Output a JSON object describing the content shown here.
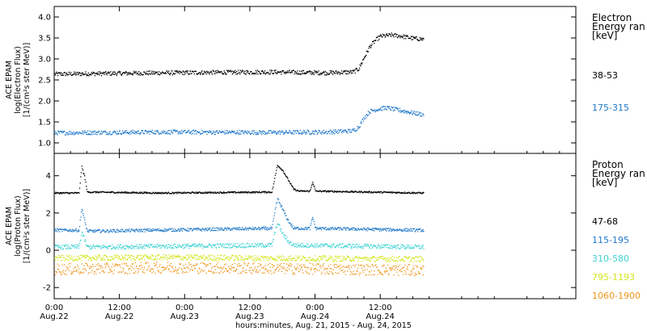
{
  "chart_data": {
    "type": "scatter",
    "x_axis": {
      "label": "hours:minutes, Aug. 21, 2015 - Aug. 24, 2015",
      "range_hours": [
        0,
        96
      ],
      "ticks": [
        {
          "hour": 0,
          "time": "0:00",
          "date": "Aug.22"
        },
        {
          "hour": 12,
          "time": "12:00",
          "date": "Aug.22"
        },
        {
          "hour": 24,
          "time": "0:00",
          "date": "Aug.23"
        },
        {
          "hour": 36,
          "time": "12:00",
          "date": "Aug.23"
        },
        {
          "hour": 48,
          "time": "0:00",
          "date": "Aug.24"
        },
        {
          "hour": 60,
          "time": "12:00",
          "date": "Aug.24"
        }
      ]
    },
    "panels": [
      {
        "id": "electron",
        "ylabel_lines": [
          "ACE EPAM",
          "log(Electron Flux)",
          "[1/(cm²s ster MeV)]"
        ],
        "ylim": [
          0.75,
          4.25
        ],
        "yticks": [
          "1.0",
          "1.5",
          "2.0",
          "2.5",
          "3.0",
          "3.5",
          "4.0"
        ],
        "ytick_values": [
          1.0,
          1.5,
          2.0,
          2.5,
          3.0,
          3.5,
          4.0
        ],
        "legend_title": [
          "Electron",
          "Energy ran",
          "[keV]"
        ],
        "series": [
          {
            "name": "38-53",
            "color": "#000000",
            "noise": 0.05,
            "points": [
              [
                0,
                2.65
              ],
              [
                20,
                2.68
              ],
              [
                40,
                2.7
              ],
              [
                50,
                2.68
              ],
              [
                55,
                2.7
              ],
              [
                56,
                2.78
              ],
              [
                57,
                3.05
              ],
              [
                58,
                3.3
              ],
              [
                59,
                3.45
              ],
              [
                60,
                3.55
              ],
              [
                62,
                3.58
              ],
              [
                64,
                3.55
              ],
              [
                66,
                3.5
              ],
              [
                68,
                3.48
              ]
            ]
          },
          {
            "name": "175-315",
            "color": "#1f78c8",
            "noise": 0.05,
            "points": [
              [
                0,
                1.25
              ],
              [
                20,
                1.27
              ],
              [
                40,
                1.26
              ],
              [
                50,
                1.27
              ],
              [
                55,
                1.3
              ],
              [
                56,
                1.4
              ],
              [
                57,
                1.62
              ],
              [
                58,
                1.76
              ],
              [
                59,
                1.8
              ],
              [
                61,
                1.85
              ],
              [
                63,
                1.8
              ],
              [
                65,
                1.75
              ],
              [
                68,
                1.68
              ]
            ]
          }
        ]
      },
      {
        "id": "proton",
        "ylabel_lines": [
          "ACE EPAM",
          "log(Proton Flux)",
          "[1/(cm²s ster MeV)]"
        ],
        "ylim": [
          -2.6,
          5.2
        ],
        "yticks": [
          "-2",
          "0",
          "2",
          "4"
        ],
        "ytick_values": [
          -2,
          0,
          2,
          4
        ],
        "legend_title": [
          "Proton",
          "Energy ran",
          "[keV]"
        ],
        "series": [
          {
            "name": "47-68",
            "color": "#000000",
            "noise": 0.04,
            "points": [
              [
                0,
                3.1
              ],
              [
                4.5,
                3.1
              ],
              [
                5,
                4.5
              ],
              [
                5.5,
                4.0
              ],
              [
                6,
                3.15
              ],
              [
                20,
                3.1
              ],
              [
                40,
                3.15
              ],
              [
                41,
                4.6
              ],
              [
                42,
                4.3
              ],
              [
                43,
                3.8
              ],
              [
                44,
                3.3
              ],
              [
                45,
                3.2
              ],
              [
                47,
                3.2
              ],
              [
                47.5,
                3.7
              ],
              [
                48,
                3.2
              ],
              [
                68,
                3.1
              ]
            ]
          },
          {
            "name": "115-195",
            "color": "#1f78c8",
            "noise": 0.08,
            "points": [
              [
                0,
                1.1
              ],
              [
                4.5,
                1.1
              ],
              [
                5,
                2.3
              ],
              [
                5.5,
                1.6
              ],
              [
                6,
                1.05
              ],
              [
                40,
                1.2
              ],
              [
                41,
                2.8
              ],
              [
                42,
                2.2
              ],
              [
                43,
                1.6
              ],
              [
                44,
                1.2
              ],
              [
                47,
                1.2
              ],
              [
                47.5,
                1.8
              ],
              [
                48,
                1.2
              ],
              [
                68,
                1.1
              ]
            ]
          },
          {
            "name": "310-580",
            "color": "#3fd2d2",
            "noise": 0.12,
            "points": [
              [
                0,
                0.2
              ],
              [
                4.5,
                0.2
              ],
              [
                5,
                1.0
              ],
              [
                5.5,
                0.6
              ],
              [
                6,
                0.2
              ],
              [
                40,
                0.3
              ],
              [
                41,
                1.5
              ],
              [
                42,
                0.9
              ],
              [
                43,
                0.5
              ],
              [
                44,
                0.3
              ],
              [
                68,
                0.2
              ]
            ]
          },
          {
            "name": "795-1193",
            "color": "#d2e61e",
            "noise": 0.15,
            "points": [
              [
                0,
                -0.4
              ],
              [
                20,
                -0.35
              ],
              [
                40,
                -0.4
              ],
              [
                68,
                -0.45
              ]
            ]
          },
          {
            "name": "1060-1900",
            "color": "#f0961e",
            "noise": 0.3,
            "points": [
              [
                0,
                -1.0
              ],
              [
                20,
                -0.9
              ],
              [
                40,
                -0.95
              ],
              [
                68,
                -1.05
              ]
            ]
          }
        ]
      }
    ]
  }
}
